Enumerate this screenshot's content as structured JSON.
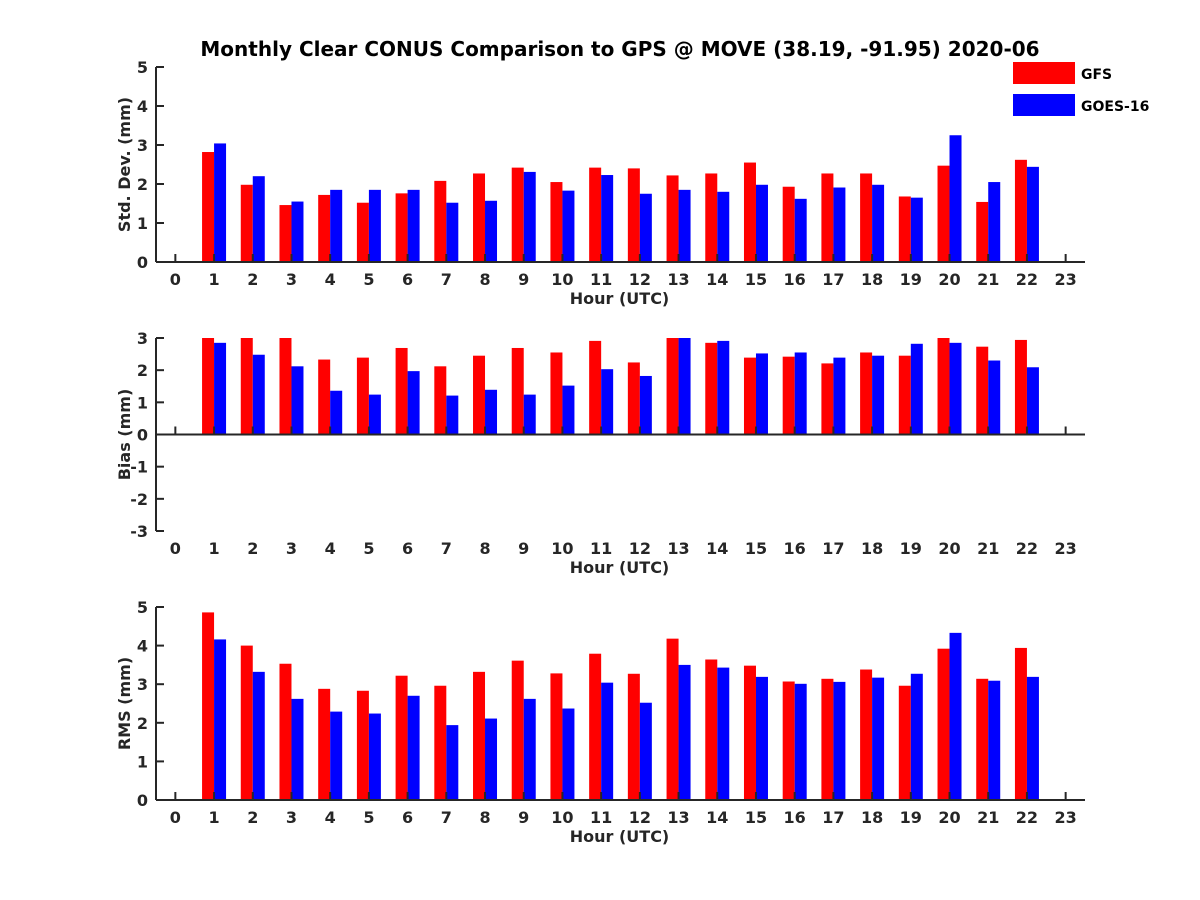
{
  "title": "Monthly Clear CONUS Comparison to GPS @ MOVE (38.19, -91.95) 2020-06",
  "colors": {
    "gfs": "#ff0000",
    "goes": "#0000ff",
    "axis": "#262626"
  },
  "legend": [
    {
      "label": "GFS",
      "color": "#ff0000"
    },
    {
      "label": "GOES-16",
      "color": "#0000ff"
    }
  ],
  "chart_data": [
    {
      "type": "bar",
      "id": "std",
      "ylabel": "Std. Dev. (mm)",
      "xlabel": "Hour (UTC)",
      "xlim": [
        -0.5,
        23.5
      ],
      "ylim": [
        0,
        5
      ],
      "yticks": [
        0,
        1,
        2,
        3,
        4,
        5
      ],
      "xticks": [
        0,
        1,
        2,
        3,
        4,
        5,
        6,
        7,
        8,
        9,
        10,
        11,
        12,
        13,
        14,
        15,
        16,
        17,
        18,
        19,
        20,
        21,
        22,
        23
      ],
      "x": [
        1,
        2,
        3,
        4,
        5,
        6,
        7,
        8,
        9,
        10,
        11,
        12,
        13,
        14,
        15,
        16,
        17,
        18,
        19,
        20,
        21,
        22
      ],
      "series": [
        {
          "name": "GFS",
          "values": [
            2.82,
            1.98,
            1.46,
            1.72,
            1.52,
            1.76,
            2.08,
            2.27,
            2.42,
            2.05,
            2.42,
            2.4,
            2.22,
            2.27,
            2.55,
            1.93,
            2.27,
            2.27,
            1.68,
            2.47,
            1.54,
            2.62
          ]
        },
        {
          "name": "GOES-16",
          "values": [
            3.04,
            2.2,
            1.55,
            1.85,
            1.85,
            1.85,
            1.52,
            1.57,
            2.31,
            1.83,
            2.23,
            1.75,
            1.85,
            1.8,
            1.98,
            1.62,
            1.91,
            1.98,
            1.65,
            3.25,
            2.05,
            2.44
          ]
        }
      ]
    },
    {
      "type": "bar",
      "id": "bias",
      "ylabel": "Bias (mm)",
      "xlabel": "Hour (UTC)",
      "xlim": [
        -0.5,
        23.5
      ],
      "ylim": [
        -3,
        3
      ],
      "yticks": [
        -3,
        -2,
        -1,
        0,
        1,
        2,
        3
      ],
      "xticks": [
        0,
        1,
        2,
        3,
        4,
        5,
        6,
        7,
        8,
        9,
        10,
        11,
        12,
        13,
        14,
        15,
        16,
        17,
        18,
        19,
        20,
        21,
        22,
        23
      ],
      "x": [
        1,
        2,
        3,
        4,
        5,
        6,
        7,
        8,
        9,
        10,
        11,
        12,
        13,
        14,
        15,
        16,
        17,
        18,
        19,
        20,
        21,
        22
      ],
      "series": [
        {
          "name": "GFS",
          "values": [
            3.0,
            3.0,
            3.0,
            2.33,
            2.39,
            2.69,
            2.12,
            2.45,
            2.69,
            2.55,
            2.91,
            2.24,
            3.0,
            2.85,
            2.39,
            2.42,
            2.21,
            2.55,
            2.45,
            3.0,
            2.73,
            2.94
          ]
        },
        {
          "name": "GOES-16",
          "values": [
            2.85,
            2.48,
            2.12,
            1.36,
            1.24,
            1.97,
            1.21,
            1.39,
            1.24,
            1.52,
            2.03,
            1.82,
            3.0,
            2.91,
            2.52,
            2.55,
            2.39,
            2.45,
            2.82,
            2.85,
            2.3,
            2.09
          ]
        }
      ]
    },
    {
      "type": "bar",
      "id": "rms",
      "ylabel": "RMS (mm)",
      "xlabel": "Hour (UTC)",
      "xlim": [
        -0.5,
        23.5
      ],
      "ylim": [
        0,
        5
      ],
      "yticks": [
        0,
        1,
        2,
        3,
        4,
        5
      ],
      "xticks": [
        0,
        1,
        2,
        3,
        4,
        5,
        6,
        7,
        8,
        9,
        10,
        11,
        12,
        13,
        14,
        15,
        16,
        17,
        18,
        19,
        20,
        21,
        22,
        23
      ],
      "x": [
        1,
        2,
        3,
        4,
        5,
        6,
        7,
        8,
        9,
        10,
        11,
        12,
        13,
        14,
        15,
        16,
        17,
        18,
        19,
        20,
        21,
        22
      ],
      "series": [
        {
          "name": "GFS",
          "values": [
            4.86,
            4.0,
            3.53,
            2.88,
            2.83,
            3.22,
            2.96,
            3.32,
            3.61,
            3.28,
            3.79,
            3.27,
            4.18,
            3.64,
            3.48,
            3.07,
            3.14,
            3.38,
            2.96,
            3.92,
            3.14,
            3.94
          ]
        },
        {
          "name": "GOES-16",
          "values": [
            4.16,
            3.32,
            2.62,
            2.29,
            2.24,
            2.7,
            1.94,
            2.11,
            2.62,
            2.37,
            3.04,
            2.52,
            3.5,
            3.43,
            3.19,
            3.01,
            3.06,
            3.17,
            3.27,
            4.33,
            3.09,
            3.19
          ]
        }
      ]
    }
  ]
}
